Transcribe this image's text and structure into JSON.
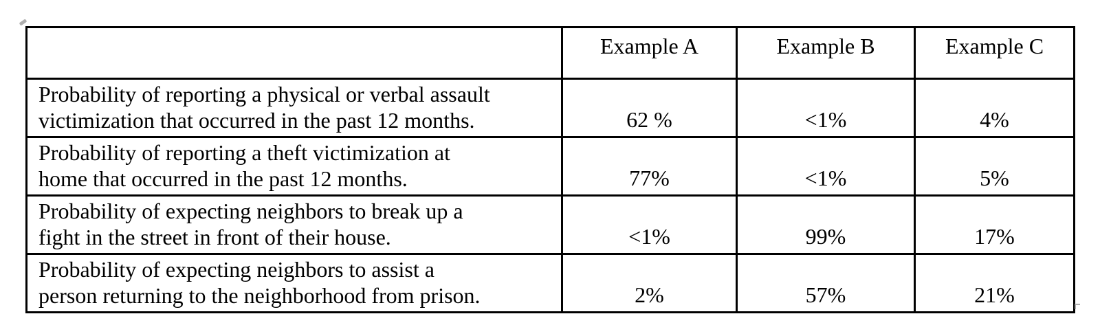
{
  "table": {
    "columns": [
      "",
      "Example A",
      "Example B",
      "Example C"
    ],
    "rows": [
      {
        "label": "Probability of reporting a physical or verbal assault\nvictimization that occurred in the past 12 months.",
        "values": [
          "62 %",
          "<1%",
          "4%"
        ]
      },
      {
        "label": "Probability of reporting a theft victimization at\nhome that occurred in the past 12 months.",
        "values": [
          "77%",
          "<1%",
          "5%"
        ]
      },
      {
        "label": "Probability of expecting neighbors to break up a\nfight in the street in front of their house.",
        "values": [
          "<1%",
          "99%",
          "17%"
        ]
      },
      {
        "label": "Probability of expecting neighbors to assist a\nperson returning to the neighborhood from prison.",
        "values": [
          "2%",
          "57%",
          "21%"
        ]
      }
    ]
  },
  "colors": {
    "border": "#000000",
    "text": "#000000",
    "background": "#ffffff",
    "artifact_gray": "#9a9a9a"
  },
  "icons": {
    "anchor_mark": "table-anchor-mark",
    "resize_mark": "table-resize-handle"
  }
}
